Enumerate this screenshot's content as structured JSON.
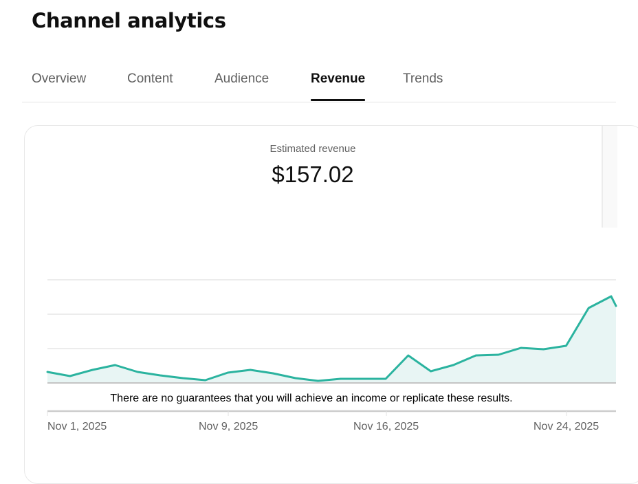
{
  "page": {
    "title": "Channel analytics"
  },
  "tabs": [
    {
      "label": "Overview",
      "active": false
    },
    {
      "label": "Content",
      "active": false
    },
    {
      "label": "Audience",
      "active": false
    },
    {
      "label": "Revenue",
      "active": true
    },
    {
      "label": "Trends",
      "active": false
    }
  ],
  "metric": {
    "label": "Estimated revenue",
    "value": "$157.02"
  },
  "disclaimer": "There are no guarantees that you will achieve an income or replicate these results.",
  "colors": {
    "line": "#2bb39f",
    "fill": "#e8f5f4",
    "grid": "#ececec",
    "baseline": "#c4c4c4",
    "axis": "#cccccc",
    "active_tab": "#0f0f0f",
    "inactive_tab": "#606060"
  },
  "chart_data": {
    "type": "area",
    "title": "Estimated revenue",
    "xlabel": "",
    "ylabel": "",
    "y_units": "relative height in px above baseline (no y-axis labels shown)",
    "grid": true,
    "gridlines_count": 3,
    "x_tick_labels": [
      "Nov 1, 2025",
      "Nov 9, 2025",
      "Nov 16, 2025",
      "Nov 24, 2025"
    ],
    "x": [
      "Nov 1",
      "Nov 2",
      "Nov 3",
      "Nov 4",
      "Nov 5",
      "Nov 6",
      "Nov 7",
      "Nov 8",
      "Nov 9",
      "Nov 10",
      "Nov 11",
      "Nov 12",
      "Nov 13",
      "Nov 14",
      "Nov 15",
      "Nov 16",
      "Nov 17",
      "Nov 18",
      "Nov 19",
      "Nov 20",
      "Nov 21",
      "Nov 22",
      "Nov 23",
      "Nov 24",
      "Nov 25",
      "Nov 26",
      "Nov 27 (partial)"
    ],
    "values": [
      16,
      10,
      19,
      26,
      16,
      11,
      7,
      4,
      15,
      19,
      14,
      7,
      3,
      6,
      6,
      6,
      40,
      17,
      26,
      40,
      41,
      51,
      49,
      54,
      109,
      126,
      112
    ],
    "ylim": [
      0,
      150
    ]
  }
}
